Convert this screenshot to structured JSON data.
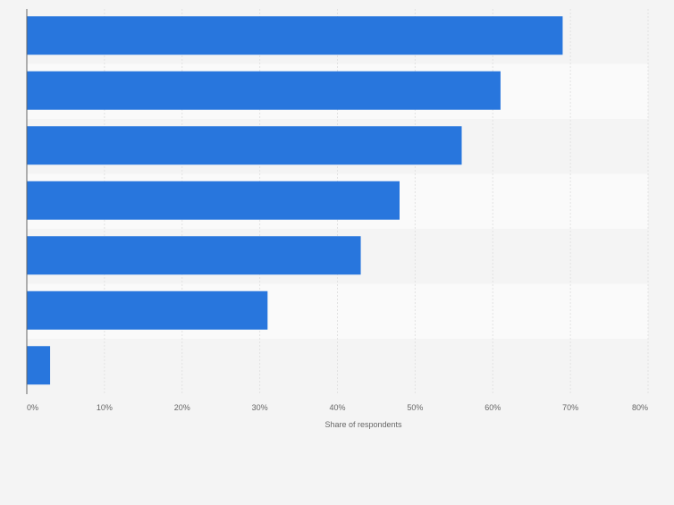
{
  "chart_data": {
    "type": "bar",
    "orientation": "horizontal",
    "categories": [
      "",
      "",
      "",
      "",
      "",
      "",
      ""
    ],
    "values": [
      69,
      61,
      56,
      48,
      43,
      31,
      3
    ],
    "xlabel": "Share of respondents",
    "ylabel": "",
    "xlim": [
      0,
      80
    ],
    "x_ticks": [
      "0%",
      "10%",
      "20%",
      "30%",
      "40%",
      "50%",
      "60%",
      "70%",
      "80%"
    ],
    "grid": true,
    "legend": "none",
    "colors": {
      "bar": "#2876dd",
      "band_light": "#fafafa",
      "band_dark": "#f4f4f4",
      "grid": "#e2e2e2",
      "axis": "#666666",
      "tick_text": "#666666"
    }
  }
}
